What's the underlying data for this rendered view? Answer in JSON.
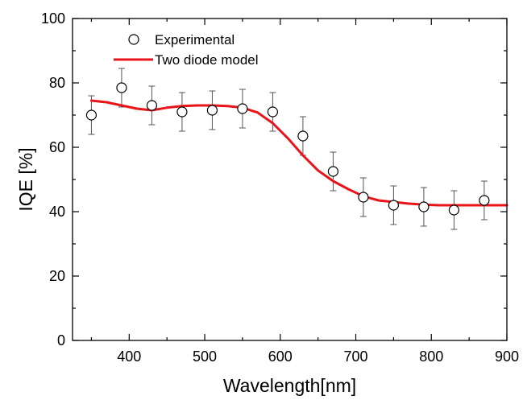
{
  "chart_data": {
    "type": "scatter",
    "title": "",
    "xlabel": "Wavelength[nm]",
    "ylabel": "IQE [%]",
    "xlim": [
      325,
      900
    ],
    "ylim": [
      0,
      100
    ],
    "xticks": [
      400,
      500,
      600,
      700,
      800,
      900
    ],
    "yticks": [
      0,
      20,
      40,
      60,
      80,
      100
    ],
    "grid": false,
    "legend_position": "top-left",
    "series": [
      {
        "name": "Experimental",
        "kind": "scatter-errorbar",
        "marker": "open-circle",
        "color": "#000000",
        "x": [
          350,
          390,
          430,
          470,
          510,
          550,
          590,
          630,
          670,
          710,
          750,
          790,
          830,
          870
        ],
        "y": [
          70,
          78.5,
          73,
          71,
          71.5,
          72,
          71,
          63.5,
          52.5,
          44.5,
          42,
          41.5,
          40.5,
          43.5
        ],
        "err": [
          6,
          6,
          6,
          6,
          6,
          6,
          6,
          6,
          6,
          6,
          6,
          6,
          6,
          6
        ]
      },
      {
        "name": "Two diode model",
        "kind": "line",
        "color": "#e8141a",
        "x": [
          350,
          370,
          390,
          410,
          430,
          450,
          470,
          490,
          510,
          530,
          550,
          570,
          590,
          610,
          630,
          650,
          670,
          690,
          710,
          730,
          750,
          770,
          790,
          810,
          830,
          850,
          870,
          900
        ],
        "y": [
          74.5,
          74,
          73,
          72,
          71.5,
          72.3,
          72.8,
          73,
          73,
          72.8,
          72.3,
          70.8,
          67.5,
          62.8,
          57.5,
          52.8,
          49.5,
          47,
          44.8,
          43.5,
          43,
          42.5,
          42.2,
          42,
          42,
          42,
          42,
          42
        ]
      }
    ]
  }
}
